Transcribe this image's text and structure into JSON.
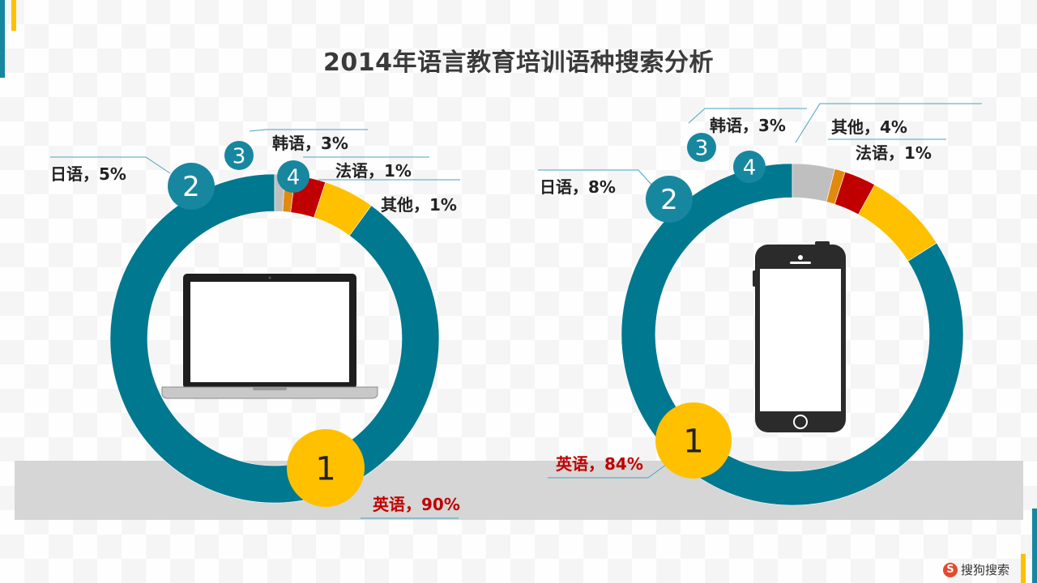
{
  "title": "2014年语言教育培训语种搜索分析",
  "brand": {
    "logo_text": "搜狗搜索",
    "logo_letter": "S"
  },
  "colors": {
    "english": "#00788f",
    "japanese": "#ffc000",
    "korean": "#c00000",
    "french": "#e08a10",
    "other": "#bfbfbf",
    "badge_teal": "#1787a0",
    "badge_yellow": "#ffc000"
  },
  "chart_data": [
    {
      "type": "pie",
      "device": "laptop-icon",
      "series": [
        {
          "name": "英语",
          "value": 90,
          "label": "英语，90%",
          "rank": "1"
        },
        {
          "name": "日语",
          "value": 5,
          "label": "日语，5%",
          "rank": "2"
        },
        {
          "name": "韩语",
          "value": 3,
          "label": "韩语，3%",
          "rank": "3"
        },
        {
          "name": "法语",
          "value": 1,
          "label": "法语，1%",
          "rank": "4"
        },
        {
          "name": "其他",
          "value": 1,
          "label": "其他，1%",
          "rank": ""
        }
      ]
    },
    {
      "type": "pie",
      "device": "phone-icon",
      "series": [
        {
          "name": "英语",
          "value": 84,
          "label": "英语，84%",
          "rank": "1"
        },
        {
          "name": "日语",
          "value": 8,
          "label": "日语，8%",
          "rank": "2"
        },
        {
          "name": "韩语",
          "value": 3,
          "label": "韩语，3%",
          "rank": "3"
        },
        {
          "name": "法语",
          "value": 1,
          "label": "法语，1%",
          "rank": "4"
        },
        {
          "name": "其他",
          "value": 4,
          "label": "其他，4%",
          "rank": ""
        }
      ]
    }
  ]
}
